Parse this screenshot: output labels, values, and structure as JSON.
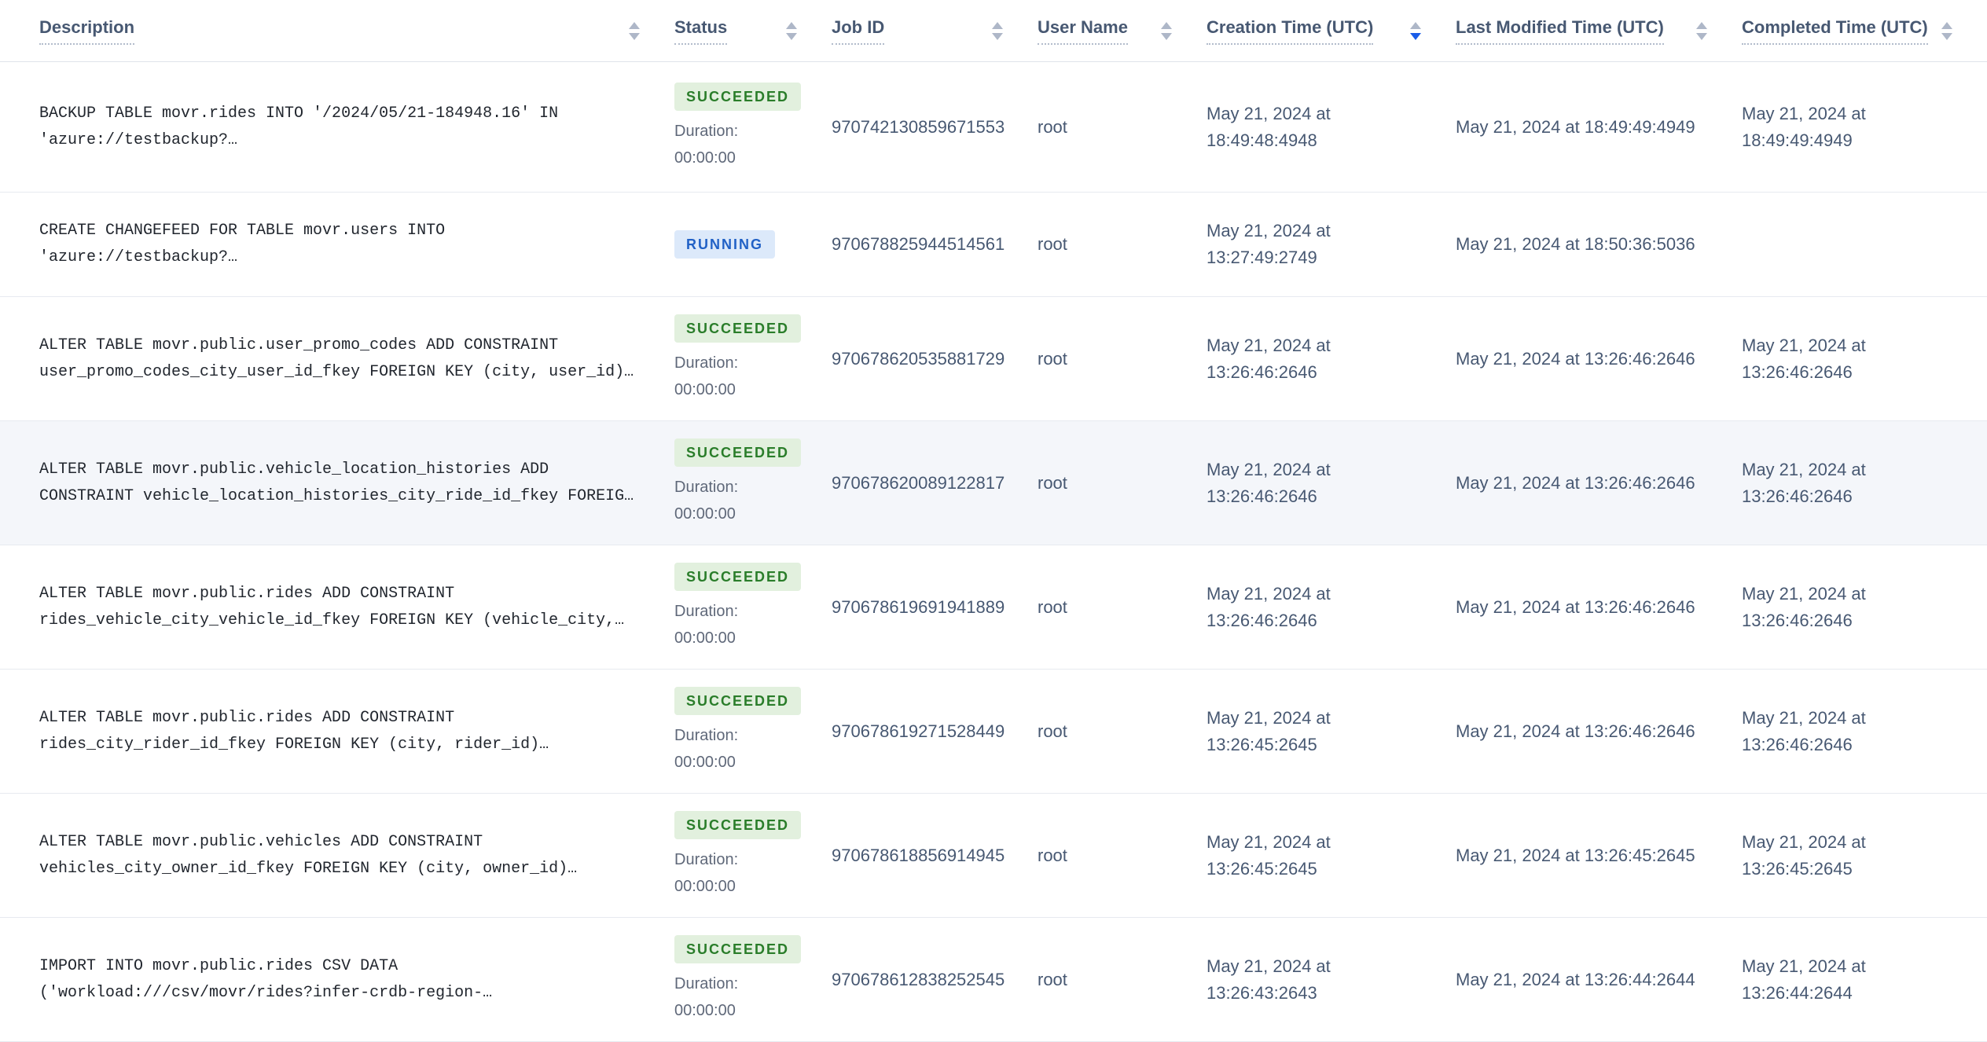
{
  "colors": {
    "succeeded_bg": "#e2f0de",
    "succeeded_text": "#2a7d2a",
    "running_bg": "#dce9fa",
    "running_text": "#2161c6",
    "active_sort_arrow": "#1a5ce8",
    "header_text": "#475872"
  },
  "table": {
    "sort": {
      "column": "Creation Time (UTC)",
      "direction": "desc"
    },
    "columns": [
      {
        "label": "Description"
      },
      {
        "label": "Status"
      },
      {
        "label": "Job ID"
      },
      {
        "label": "User Name"
      },
      {
        "label": "Creation Time (UTC)"
      },
      {
        "label": "Last Modified Time (UTC)"
      },
      {
        "label": "Completed Time (UTC)"
      }
    ],
    "rows": [
      {
        "desc": [
          "BACKUP TABLE movr.rides INTO '/2024/05/21-184948.16' IN",
          "'azure://testbackup?…"
        ],
        "status": "SUCCEEDED",
        "status_type": "succeeded",
        "duration_label": "Duration:",
        "duration_value": "00:00:00",
        "job_id": "970742130859671553",
        "user": "root",
        "created": [
          "May 21, 2024 at",
          "18:49:48:4948"
        ],
        "modified": "May 21, 2024 at 18:49:49:4949",
        "completed": [
          "May 21, 2024 at",
          "18:49:49:4949"
        ]
      },
      {
        "desc": [
          "CREATE CHANGEFEED FOR TABLE movr.users INTO",
          "'azure://testbackup?…"
        ],
        "status": "RUNNING",
        "status_type": "running",
        "job_id": "970678825944514561",
        "user": "root",
        "created": [
          "May 21, 2024 at",
          "13:27:49:2749"
        ],
        "modified": "May 21, 2024 at 18:50:36:5036"
      },
      {
        "desc": [
          "ALTER TABLE movr.public.user_promo_codes ADD CONSTRAINT",
          "user_promo_codes_city_user_id_fkey FOREIGN KEY (city, user_id)…"
        ],
        "status": "SUCCEEDED",
        "status_type": "succeeded",
        "duration_label": "Duration:",
        "duration_value": "00:00:00",
        "job_id": "970678620535881729",
        "user": "root",
        "created": [
          "May 21, 2024 at",
          "13:26:46:2646"
        ],
        "modified": "May 21, 2024 at 13:26:46:2646",
        "completed": [
          "May 21, 2024 at",
          "13:26:46:2646"
        ]
      },
      {
        "desc": [
          "ALTER TABLE movr.public.vehicle_location_histories ADD",
          "CONSTRAINT vehicle_location_histories_city_ride_id_fkey FOREIG…"
        ],
        "status": "SUCCEEDED",
        "status_type": "succeeded",
        "duration_label": "Duration:",
        "duration_value": "00:00:00",
        "job_id": "970678620089122817",
        "user": "root",
        "created": [
          "May 21, 2024 at",
          "13:26:46:2646"
        ],
        "modified": "May 21, 2024 at 13:26:46:2646",
        "completed": [
          "May 21, 2024 at",
          "13:26:46:2646"
        ]
      },
      {
        "desc": [
          "ALTER TABLE movr.public.rides ADD CONSTRAINT",
          "rides_vehicle_city_vehicle_id_fkey FOREIGN KEY (vehicle_city,…"
        ],
        "status": "SUCCEEDED",
        "status_type": "succeeded",
        "duration_label": "Duration:",
        "duration_value": "00:00:00",
        "job_id": "970678619691941889",
        "user": "root",
        "created": [
          "May 21, 2024 at",
          "13:26:46:2646"
        ],
        "modified": "May 21, 2024 at 13:26:46:2646",
        "completed": [
          "May 21, 2024 at",
          "13:26:46:2646"
        ]
      },
      {
        "desc": [
          "ALTER TABLE movr.public.rides ADD CONSTRAINT",
          "rides_city_rider_id_fkey FOREIGN KEY (city, rider_id)…"
        ],
        "status": "SUCCEEDED",
        "status_type": "succeeded",
        "duration_label": "Duration:",
        "duration_value": "00:00:00",
        "job_id": "970678619271528449",
        "user": "root",
        "created": [
          "May 21, 2024 at",
          "13:26:45:2645"
        ],
        "modified": "May 21, 2024 at 13:26:46:2646",
        "completed": [
          "May 21, 2024 at",
          "13:26:46:2646"
        ]
      },
      {
        "desc": [
          "ALTER TABLE movr.public.vehicles ADD CONSTRAINT",
          "vehicles_city_owner_id_fkey FOREIGN KEY (city, owner_id)…"
        ],
        "status": "SUCCEEDED",
        "status_type": "succeeded",
        "duration_label": "Duration:",
        "duration_value": "00:00:00",
        "job_id": "970678618856914945",
        "user": "root",
        "created": [
          "May 21, 2024 at",
          "13:26:45:2645"
        ],
        "modified": "May 21, 2024 at 13:26:45:2645",
        "completed": [
          "May 21, 2024 at",
          "13:26:45:2645"
        ]
      },
      {
        "desc": [
          "IMPORT INTO movr.public.rides CSV DATA",
          "('workload:///csv/movr/rides?infer-crdb-region-…"
        ],
        "status": "SUCCEEDED",
        "status_type": "succeeded",
        "duration_label": "Duration:",
        "duration_value": "00:00:00",
        "job_id": "970678612838252545",
        "user": "root",
        "created": [
          "May 21, 2024 at",
          "13:26:43:2643"
        ],
        "modified": "May 21, 2024 at 13:26:44:2644",
        "completed": [
          "May 21, 2024 at",
          "13:26:44:2644"
        ]
      }
    ]
  }
}
